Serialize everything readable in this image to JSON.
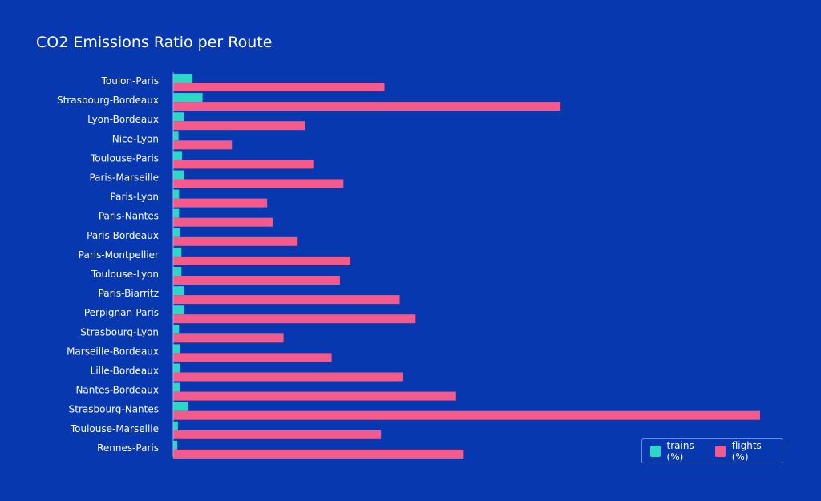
{
  "colors": {
    "background": "#0738b0",
    "trains": "#2ad8c5",
    "flights": "#f45b8c",
    "text": "#ffffff",
    "axis": "#9fb3e6"
  },
  "chart_data": {
    "type": "bar",
    "orientation": "horizontal",
    "title": "CO2 Emissions Ratio per Route",
    "xlabel": "",
    "ylabel": "",
    "grid": false,
    "legend_position": "bottom-right",
    "categories": [
      "Toulon-Paris",
      "Strasbourg-Bordeaux",
      "Lyon-Bordeaux",
      "Nice-Lyon",
      "Toulouse-Paris",
      "Paris-Marseille",
      "Paris-Lyon",
      "Paris-Nantes",
      "Paris-Bordeaux",
      "Paris-Montpellier",
      "Toulouse-Lyon",
      "Paris-Biarritz",
      "Perpignan-Paris",
      "Strasbourg-Lyon",
      "Marseille-Bordeaux",
      "Lille-Bordeaux",
      "Nantes-Bordeaux",
      "Strasbourg-Nantes",
      "Toulouse-Marseille",
      "Rennes-Paris"
    ],
    "series": [
      {
        "name": "trains (%)",
        "color": "#2ad8c5",
        "values": [
          3.3,
          5.0,
          1.8,
          0.9,
          1.5,
          1.8,
          1.0,
          1.0,
          1.1,
          1.4,
          1.4,
          1.8,
          1.8,
          1.0,
          1.1,
          1.1,
          1.1,
          2.5,
          0.8,
          0.7
        ]
      },
      {
        "name": "flights (%)",
        "color": "#f45b8c",
        "values": [
          36,
          66,
          22.5,
          10,
          24,
          29,
          16,
          17,
          21.2,
          30.2,
          28.4,
          38.6,
          41.3,
          18.8,
          27,
          39.2,
          48.2,
          100,
          35.4,
          49.5
        ]
      }
    ],
    "xlim": [
      0,
      100
    ]
  },
  "legend": {
    "trains_label": "trains (%)",
    "flights_label": "flights (%)"
  }
}
